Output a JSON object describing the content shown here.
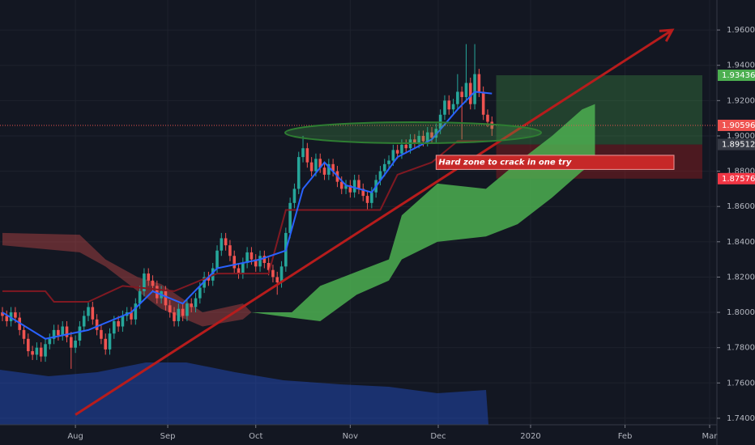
{
  "chart_data": {
    "type": "candlestick",
    "xlim": [
      -0.566,
      166.4
    ],
    "ylim": [
      1.7363,
      1.977
    ],
    "yticks": [
      {
        "value": 1.96,
        "label": "1.96000"
      },
      {
        "value": 1.94,
        "label": "1.94000"
      },
      {
        "value": 1.92,
        "label": "1.92000"
      },
      {
        "value": 1.9,
        "label": "1.90000"
      },
      {
        "value": 1.88,
        "label": "1.88000"
      },
      {
        "value": 1.86,
        "label": "1.86000"
      },
      {
        "value": 1.84,
        "label": "1.84000"
      },
      {
        "value": 1.82,
        "label": "1.82000"
      },
      {
        "value": 1.8,
        "label": "1.80000"
      },
      {
        "value": 1.78,
        "label": "1.78000"
      },
      {
        "value": 1.76,
        "label": "1.76000"
      },
      {
        "value": 1.74,
        "label": "1.74000"
      }
    ],
    "xticks": [
      {
        "value": 17,
        "label": "Aug"
      },
      {
        "value": 38.5,
        "label": "Sep"
      },
      {
        "value": 59,
        "label": "Oct"
      },
      {
        "value": 81,
        "label": "Nov"
      },
      {
        "value": 101.5,
        "label": "Dec"
      },
      {
        "value": 123,
        "label": "2020"
      },
      {
        "value": 145,
        "label": "Feb"
      },
      {
        "value": 164.7,
        "label": "Mar"
      }
    ],
    "grid": true,
    "up_color": "#26a69a",
    "down_color": "#ef5350",
    "x": [
      0,
      1,
      2,
      3,
      4,
      5,
      6,
      7,
      8,
      9,
      10,
      11,
      12,
      13,
      14,
      15,
      16,
      17,
      18,
      19,
      20,
      21,
      22,
      23,
      24,
      25,
      26,
      27,
      28,
      29,
      30,
      31,
      32,
      33,
      34,
      35,
      36,
      37,
      38,
      39,
      40,
      41,
      42,
      43,
      44,
      45,
      46,
      47,
      48,
      49,
      50,
      51,
      52,
      53,
      54,
      55,
      56,
      57,
      58,
      59,
      60,
      61,
      62,
      63,
      64,
      65,
      66,
      67,
      68,
      69,
      70,
      71,
      72,
      73,
      74,
      75,
      76,
      77,
      78,
      79,
      80,
      81,
      82,
      83,
      84,
      85,
      86,
      87,
      88,
      89,
      90,
      91,
      92,
      93,
      94,
      95,
      96,
      97,
      98,
      99,
      100,
      101,
      102,
      103,
      104,
      105,
      106,
      107,
      108,
      109,
      110,
      111,
      112,
      113,
      114
    ],
    "candles": [
      [
        1.8,
        1.803,
        1.795,
        1.798
      ],
      [
        1.798,
        1.801,
        1.792,
        1.795
      ],
      [
        1.795,
        1.803,
        1.792,
        1.8
      ],
      [
        1.8,
        1.803,
        1.794,
        1.797
      ],
      [
        1.797,
        1.8,
        1.787,
        1.79
      ],
      [
        1.79,
        1.793,
        1.782,
        1.785
      ],
      [
        1.785,
        1.788,
        1.775,
        1.778
      ],
      [
        1.778,
        1.781,
        1.773,
        1.776
      ],
      [
        1.776,
        1.783,
        1.773,
        1.78
      ],
      [
        1.78,
        1.783,
        1.772,
        1.775
      ],
      [
        1.775,
        1.785,
        1.772,
        1.782
      ],
      [
        1.782,
        1.788,
        1.779,
        1.785
      ],
      [
        1.785,
        1.793,
        1.782,
        1.79
      ],
      [
        1.79,
        1.793,
        1.784,
        1.787
      ],
      [
        1.787,
        1.795,
        1.784,
        1.792
      ],
      [
        1.792,
        1.795,
        1.783,
        1.786
      ],
      [
        1.786,
        1.789,
        1.768,
        1.78
      ],
      [
        1.78,
        1.787,
        1.777,
        1.784
      ],
      [
        1.784,
        1.795,
        1.781,
        1.792
      ],
      [
        1.792,
        1.801,
        1.789,
        1.798
      ],
      [
        1.798,
        1.806,
        1.795,
        1.803
      ],
      [
        1.803,
        1.806,
        1.793,
        1.796
      ],
      [
        1.796,
        1.799,
        1.787,
        1.79
      ],
      [
        1.79,
        1.793,
        1.782,
        1.785
      ],
      [
        1.785,
        1.788,
        1.776,
        1.779
      ],
      [
        1.779,
        1.791,
        1.776,
        1.788
      ],
      [
        1.788,
        1.798,
        1.785,
        1.795
      ],
      [
        1.795,
        1.798,
        1.789,
        1.792
      ],
      [
        1.792,
        1.801,
        1.789,
        1.798
      ],
      [
        1.798,
        1.803,
        1.795,
        1.8
      ],
      [
        1.8,
        1.803,
        1.793,
        1.796
      ],
      [
        1.796,
        1.808,
        1.793,
        1.805
      ],
      [
        1.805,
        1.815,
        1.802,
        1.812
      ],
      [
        1.812,
        1.825,
        1.809,
        1.822
      ],
      [
        1.822,
        1.825,
        1.815,
        1.818
      ],
      [
        1.818,
        1.821,
        1.812,
        1.815
      ],
      [
        1.815,
        1.818,
        1.805,
        1.808
      ],
      [
        1.808,
        1.815,
        1.805,
        1.812
      ],
      [
        1.812,
        1.815,
        1.801,
        1.804
      ],
      [
        1.804,
        1.807,
        1.797,
        1.8
      ],
      [
        1.8,
        1.803,
        1.792,
        1.795
      ],
      [
        1.795,
        1.805,
        1.792,
        1.802
      ],
      [
        1.802,
        1.805,
        1.795,
        1.798
      ],
      [
        1.798,
        1.808,
        1.795,
        1.805
      ],
      [
        1.805,
        1.808,
        1.8,
        1.803
      ],
      [
        1.803,
        1.811,
        1.8,
        1.808
      ],
      [
        1.808,
        1.817,
        1.805,
        1.814
      ],
      [
        1.814,
        1.823,
        1.811,
        1.82
      ],
      [
        1.82,
        1.823,
        1.815,
        1.818
      ],
      [
        1.818,
        1.828,
        1.815,
        1.825
      ],
      [
        1.825,
        1.838,
        1.822,
        1.835
      ],
      [
        1.835,
        1.845,
        1.832,
        1.842
      ],
      [
        1.842,
        1.845,
        1.835,
        1.838
      ],
      [
        1.838,
        1.841,
        1.829,
        1.832
      ],
      [
        1.832,
        1.835,
        1.822,
        1.825
      ],
      [
        1.825,
        1.828,
        1.819,
        1.822
      ],
      [
        1.822,
        1.831,
        1.819,
        1.828
      ],
      [
        1.828,
        1.837,
        1.825,
        1.834
      ],
      [
        1.834,
        1.837,
        1.827,
        1.83
      ],
      [
        1.83,
        1.833,
        1.823,
        1.826
      ],
      [
        1.826,
        1.835,
        1.823,
        1.832
      ],
      [
        1.832,
        1.835,
        1.825,
        1.828
      ],
      [
        1.828,
        1.831,
        1.821,
        1.824
      ],
      [
        1.824,
        1.827,
        1.817,
        1.82
      ],
      [
        1.82,
        1.823,
        1.81,
        1.817
      ],
      [
        1.817,
        1.829,
        1.814,
        1.826
      ],
      [
        1.826,
        1.848,
        1.823,
        1.845
      ],
      [
        1.845,
        1.865,
        1.842,
        1.862
      ],
      [
        1.862,
        1.873,
        1.859,
        1.87
      ],
      [
        1.87,
        1.891,
        1.867,
        1.888
      ],
      [
        1.888,
        1.9,
        1.885,
        1.893
      ],
      [
        1.893,
        1.896,
        1.882,
        1.885
      ],
      [
        1.885,
        1.888,
        1.877,
        1.88
      ],
      [
        1.88,
        1.89,
        1.877,
        1.887
      ],
      [
        1.887,
        1.89,
        1.879,
        1.882
      ],
      [
        1.882,
        1.885,
        1.875,
        1.878
      ],
      [
        1.878,
        1.887,
        1.875,
        1.884
      ],
      [
        1.884,
        1.887,
        1.877,
        1.88
      ],
      [
        1.88,
        1.883,
        1.871,
        1.874
      ],
      [
        1.874,
        1.877,
        1.867,
        1.87
      ],
      [
        1.87,
        1.875,
        1.867,
        1.872
      ],
      [
        1.872,
        1.875,
        1.865,
        1.868
      ],
      [
        1.868,
        1.878,
        1.865,
        1.875
      ],
      [
        1.875,
        1.878,
        1.867,
        1.87
      ],
      [
        1.87,
        1.873,
        1.863,
        1.866
      ],
      [
        1.866,
        1.869,
        1.858,
        1.862
      ],
      [
        1.862,
        1.871,
        1.859,
        1.868
      ],
      [
        1.868,
        1.878,
        1.865,
        1.875
      ],
      [
        1.875,
        1.883,
        1.872,
        1.88
      ],
      [
        1.88,
        1.887,
        1.877,
        1.884
      ],
      [
        1.884,
        1.889,
        1.881,
        1.886
      ],
      [
        1.886,
        1.895,
        1.883,
        1.892
      ],
      [
        1.892,
        1.895,
        1.887,
        1.89
      ],
      [
        1.89,
        1.898,
        1.887,
        1.895
      ],
      [
        1.895,
        1.898,
        1.89,
        1.893
      ],
      [
        1.893,
        1.901,
        1.89,
        1.898
      ],
      [
        1.898,
        1.901,
        1.893,
        1.896
      ],
      [
        1.896,
        1.903,
        1.893,
        1.9
      ],
      [
        1.9,
        1.903,
        1.894,
        1.897
      ],
      [
        1.897,
        1.905,
        1.894,
        1.902
      ],
      [
        1.902,
        1.905,
        1.896,
        1.899
      ],
      [
        1.899,
        1.907,
        1.896,
        1.904
      ],
      [
        1.904,
        1.915,
        1.901,
        1.912
      ],
      [
        1.912,
        1.923,
        1.909,
        1.92
      ],
      [
        1.92,
        1.923,
        1.912,
        1.915
      ],
      [
        1.915,
        1.921,
        1.912,
        1.918
      ],
      [
        1.918,
        1.935,
        1.915,
        1.925
      ],
      [
        1.925,
        1.928,
        1.898,
        1.922
      ],
      [
        1.922,
        1.952,
        1.919,
        1.93
      ],
      [
        1.93,
        1.933,
        1.915,
        1.918
      ],
      [
        1.918,
        1.952,
        1.915,
        1.935
      ],
      [
        1.935,
        1.938,
        1.922,
        1.925
      ],
      [
        1.925,
        1.928,
        1.909,
        1.912
      ],
      [
        1.912,
        1.915,
        1.905,
        1.908
      ],
      [
        1.908,
        1.911,
        1.9,
        1.904
      ]
    ],
    "clouds": [
      {
        "color": "rgba(239,83,80,0.35)",
        "x": [
          0,
          18,
          24,
          31.5,
          37,
          46.6,
          56,
          58
        ],
        "upper": [
          1.845,
          1.844,
          1.83,
          1.82,
          1.816,
          1.8,
          1.805,
          1.8
        ],
        "lower": [
          1.838,
          1.834,
          1.826,
          1.812,
          1.802,
          1.792,
          1.796,
          1.8
        ]
      },
      {
        "color": "rgba(76,175,80,0.85)",
        "x": [
          58,
          67.4,
          74,
          82.5,
          90,
          93,
          101.3,
          112.6,
          120,
          128,
          135,
          138
        ],
        "upper": [
          1.8,
          1.8,
          1.815,
          1.823,
          1.83,
          1.855,
          1.873,
          1.87,
          1.885,
          1.9,
          1.915,
          1.918
        ],
        "lower": [
          1.8,
          1.797,
          1.795,
          1.81,
          1.818,
          1.83,
          1.84,
          1.843,
          1.85,
          1.865,
          1.88,
          1.885
        ]
      }
    ],
    "lines": [
      {
        "color": "#801922",
        "x": [
          0,
          10,
          12,
          20,
          28,
          40,
          50,
          62,
          66,
          88,
          92,
          100,
          106,
          114
        ],
        "values": [
          1.812,
          1.812,
          1.806,
          1.806,
          1.815,
          1.812,
          1.822,
          1.822,
          1.858,
          1.858,
          1.878,
          1.885,
          1.897,
          1.897
        ]
      },
      {
        "color": "#2962ff",
        "x": [
          0,
          10,
          20,
          30,
          35,
          42,
          50,
          60,
          66,
          70,
          75,
          80,
          86,
          92,
          100,
          106,
          110,
          114
        ],
        "values": [
          1.8,
          1.785,
          1.79,
          1.8,
          1.812,
          1.805,
          1.825,
          1.83,
          1.835,
          1.87,
          1.885,
          1.872,
          1.868,
          1.888,
          1.898,
          1.915,
          1.925,
          1.924
        ]
      },
      {
        "color": "#b71c1c",
        "x": [
          17,
          156
        ],
        "values": [
          1.742,
          1.96
        ]
      }
    ],
    "zones": [
      {
        "color": "rgba(76,175,80,0.28)",
        "x": [
          115,
          163
        ],
        "values": [
          1.89512,
          1.93436
        ]
      },
      {
        "color": "rgba(183,28,28,0.35)",
        "x": [
          115,
          163
        ],
        "values": [
          1.87576,
          1.89512
        ]
      }
    ],
    "annotation": {
      "text": "Hard zone to crack in one try",
      "color": "#c62828",
      "x": [
        101,
        156.4
      ],
      "values": [
        1.881,
        1.889
      ]
    },
    "current_price": 1.90596,
    "price_labels": [
      {
        "value": 1.93436,
        "label": "1.93436",
        "color": "#4caf50"
      },
      {
        "value": 1.90596,
        "label": "1.90596",
        "color": "#ef5350"
      },
      {
        "value": 1.89512,
        "label": "1.89512",
        "color": "#363a45"
      },
      {
        "value": 1.87576,
        "label": "1.87576",
        "color": "#f23645"
      }
    ]
  }
}
